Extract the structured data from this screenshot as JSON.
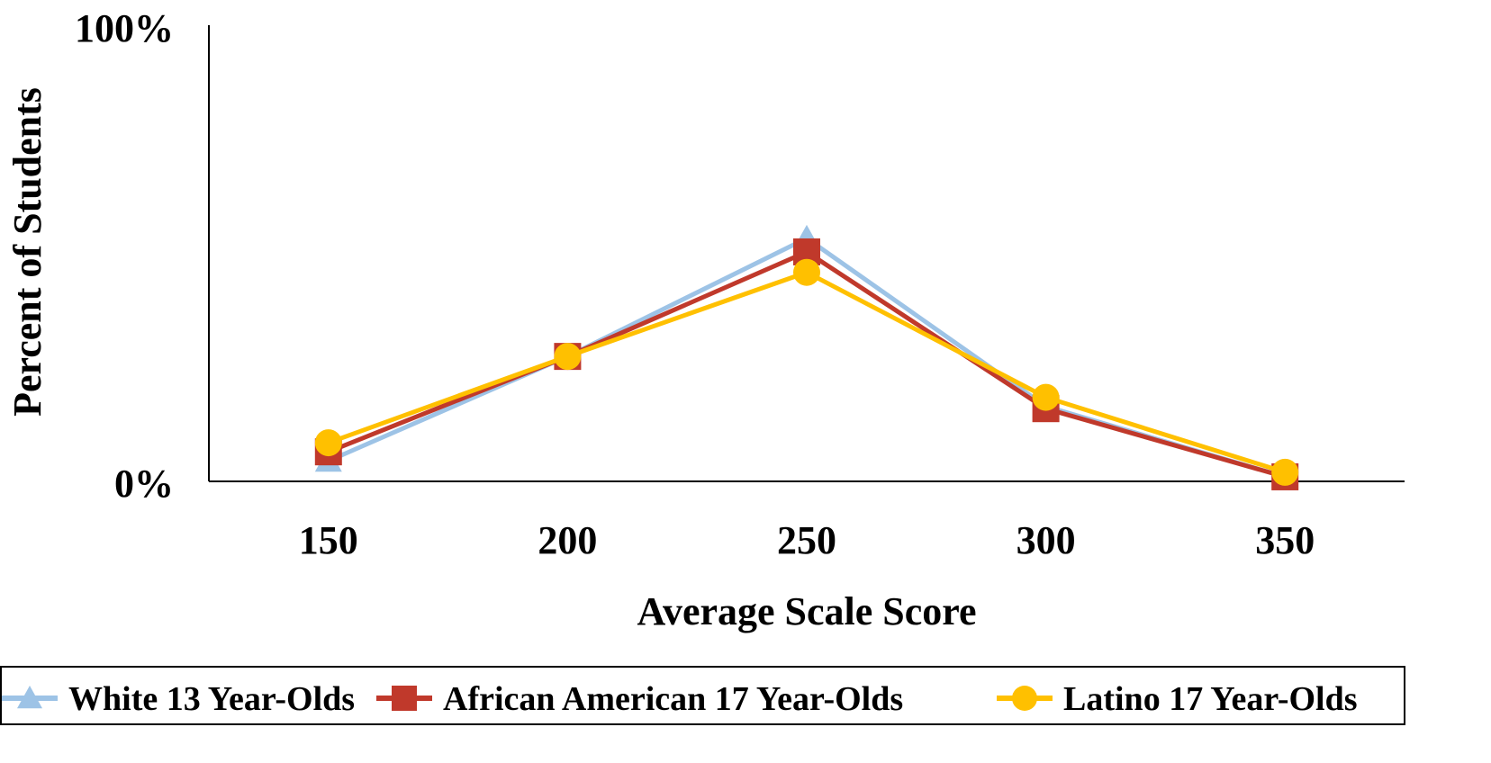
{
  "chart_data": {
    "type": "line",
    "title": "",
    "xlabel": "Average Scale Score",
    "ylabel": "Percent of Students",
    "categories": [
      "150",
      "200",
      "250",
      "300",
      "350"
    ],
    "y_ticks": [
      "0%",
      "100%"
    ],
    "ylim": [
      0,
      100
    ],
    "grid": false,
    "legend_position": "bottom",
    "series": [
      {
        "name": "White 13 Year-Olds",
        "values": [
          4.5,
          27.5,
          53.5,
          16.5,
          1.0
        ],
        "color": "#9DC3E6",
        "marker": "triangle"
      },
      {
        "name": "African American 17 Year-Olds",
        "values": [
          6.5,
          27.5,
          50.5,
          16.0,
          1.0
        ],
        "color": "#C0392B",
        "marker": "square"
      },
      {
        "name": "Latino 17 Year-Olds",
        "values": [
          8.5,
          27.5,
          46.0,
          18.5,
          2.0
        ],
        "color": "#FFC000",
        "marker": "circle"
      }
    ]
  }
}
